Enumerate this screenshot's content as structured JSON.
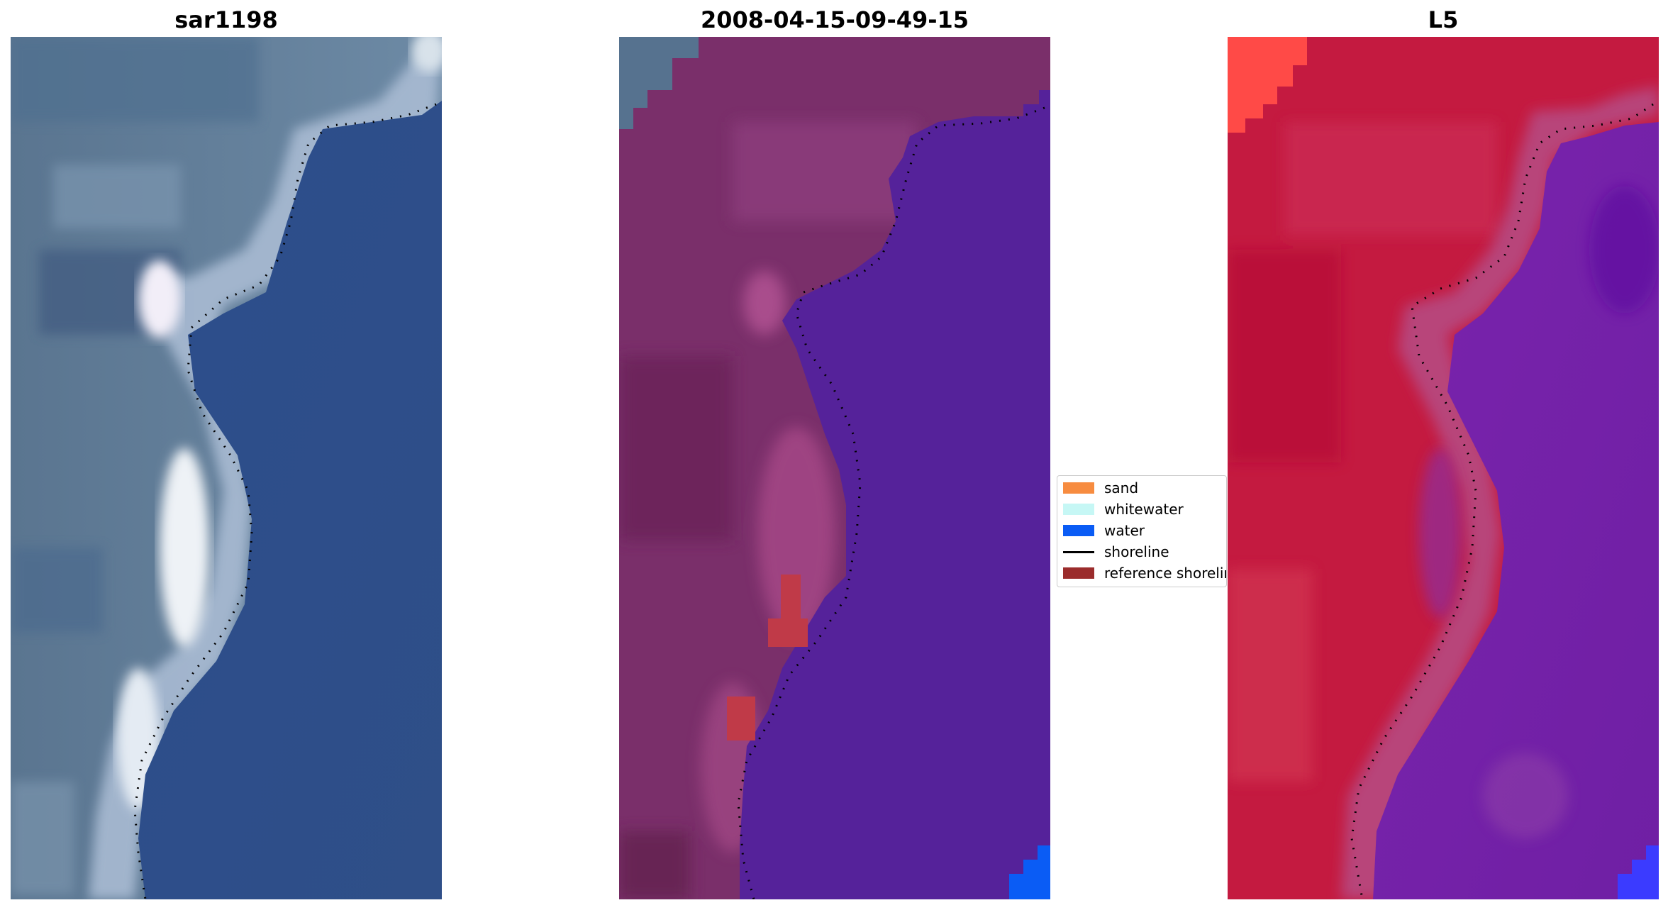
{
  "panels": [
    {
      "title": "sar1198",
      "kind": "rgb-image"
    },
    {
      "title": "2008-04-15-09-49-15",
      "kind": "classified-image"
    },
    {
      "title": "L5",
      "kind": "index-image"
    }
  ],
  "legend": {
    "items": [
      {
        "label": "sand",
        "type": "patch",
        "color": "#f78c40"
      },
      {
        "label": "whitewater",
        "type": "patch",
        "color": "#c6f7f5"
      },
      {
        "label": "water",
        "type": "patch",
        "color": "#0a5cf5"
      },
      {
        "label": "shoreline",
        "type": "line",
        "color": "#000000"
      },
      {
        "label": "reference shoreline",
        "type": "patch",
        "color": "#9b2c2c"
      }
    ]
  },
  "colors": {
    "rgb_water": "#2e4f8c",
    "rgb_land": "#5d7793",
    "rgb_whitewater": "#e6ecf4",
    "class_land": "#7a2f6a",
    "class_water": "#55229a",
    "class_water_blue": "#0a5cf5",
    "class_reference": "#c03a48",
    "index_land": "#c41a40",
    "index_water": "#7420a8",
    "index_hot": "#ff3b3b",
    "index_cold": "#3b3bff"
  }
}
